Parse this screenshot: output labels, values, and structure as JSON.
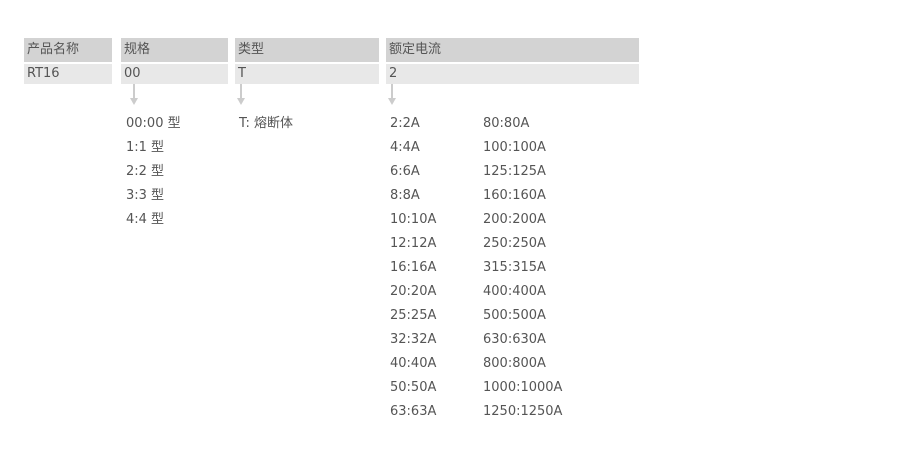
{
  "columns": [
    {
      "header": "产品名称",
      "value": "RT16"
    },
    {
      "header": "规格",
      "value": "00"
    },
    {
      "header": "类型",
      "value": "T"
    },
    {
      "header": "额定电流",
      "value": "2"
    }
  ],
  "spec_options": [
    "00:00 型",
    "1:1 型",
    "2:2 型",
    "3:3 型",
    "4:4 型"
  ],
  "type_options": [
    "T:  熔断体"
  ],
  "current_options_left": [
    "2:2A",
    "4:4A",
    "6:6A",
    "8:8A",
    "10:10A",
    "12:12A",
    "16:16A",
    "20:20A",
    "25:25A",
    "32:32A",
    "40:40A",
    "50:50A",
    "63:63A"
  ],
  "current_options_right": [
    "80:80A",
    "100:100A",
    "125:125A",
    "160:160A",
    "200:200A",
    "250:250A",
    "315:315A",
    "400:400A",
    "500:500A",
    "630:630A",
    "800:800A",
    "1000:1000A",
    "1250:1250A"
  ]
}
